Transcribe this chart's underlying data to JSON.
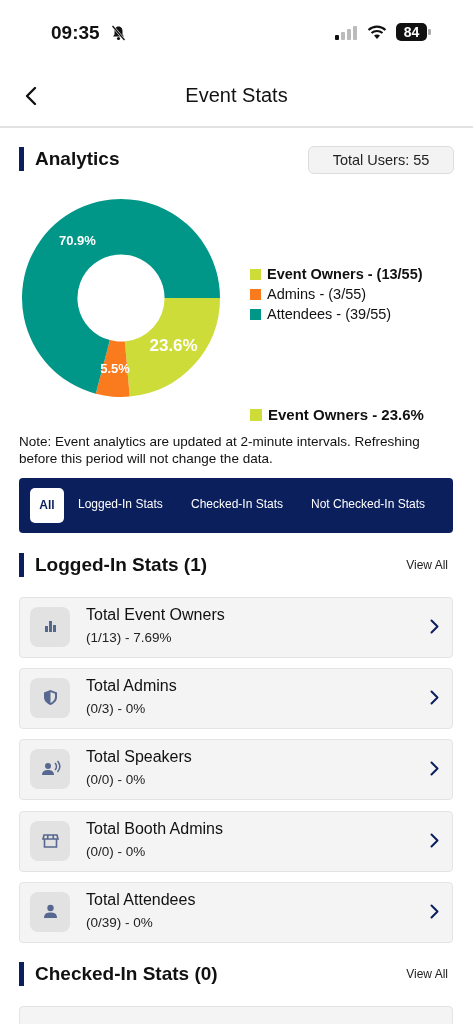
{
  "chart_data": {
    "type": "donut",
    "title": "Analytics",
    "categories": [
      "Event Owners - (13/55)",
      "Admins - (3/55)",
      "Attendees - (39/55)"
    ],
    "values": [
      23.6,
      5.5,
      70.9
    ],
    "colors": [
      "#cddc39",
      "#fa7a1e",
      "#009688"
    ],
    "value_labels": [
      "23.6%",
      "5.5%",
      "70.9%"
    ],
    "legend": "right",
    "annotations": [
      "09:35",
      "84",
      "Event Stats",
      "Total Users: 55",
      "Event Owners - 23.6%",
      "Note: Event analytics are updated at 2-minute intervals. Refreshing before this period will not change the data.",
      "All",
      "Logged-In Stats",
      "Checked-In Stats",
      "Not Checked-In Stats",
      "Logged-In Stats (1)",
      "View All",
      "Total Event Owners",
      "(1/13) - 7.69%",
      "Total Admins",
      "(0/3) - 0%",
      "Total Speakers",
      "(0/0) - 0%",
      "Total Booth Admins",
      "(0/0) - 0%",
      "Total Attendees",
      "(0/39) - 0%",
      "Checked-In Stats (0)",
      "View All"
    ]
  }
}
